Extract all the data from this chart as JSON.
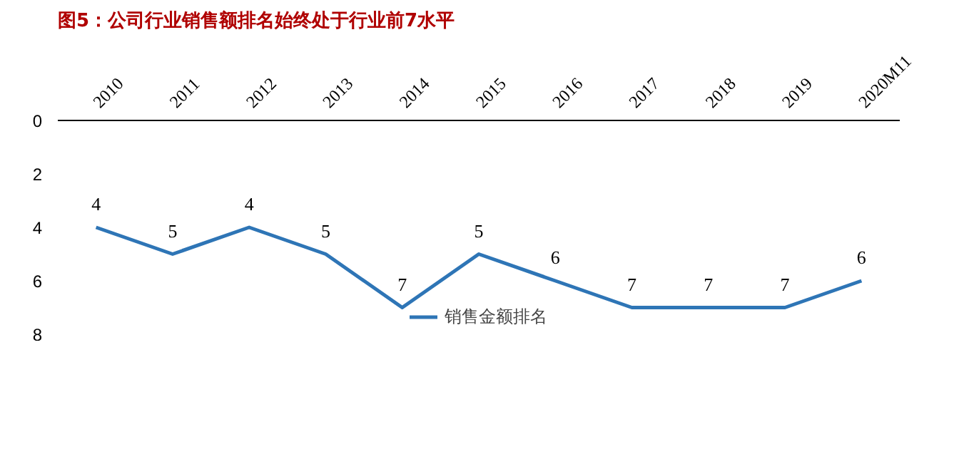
{
  "chart_data": {
    "type": "line",
    "title": "图5：公司行业销售额排名始终处于行业前7水平",
    "categories": [
      "2010",
      "2011",
      "2012",
      "2013",
      "2014",
      "2015",
      "2016",
      "2017",
      "2018",
      "2019",
      "2020M11"
    ],
    "series": [
      {
        "name": "销售金额排名",
        "color": "#2e75b6",
        "values": [
          4,
          5,
          4,
          5,
          7,
          5,
          6,
          7,
          7,
          7,
          6
        ]
      }
    ],
    "ylim": [
      8,
      0
    ],
    "yticks": [
      0,
      2,
      4,
      6,
      8
    ],
    "grid": false,
    "legend": "bottom",
    "data_labels": true,
    "marker": "none",
    "line_style": "solid"
  }
}
